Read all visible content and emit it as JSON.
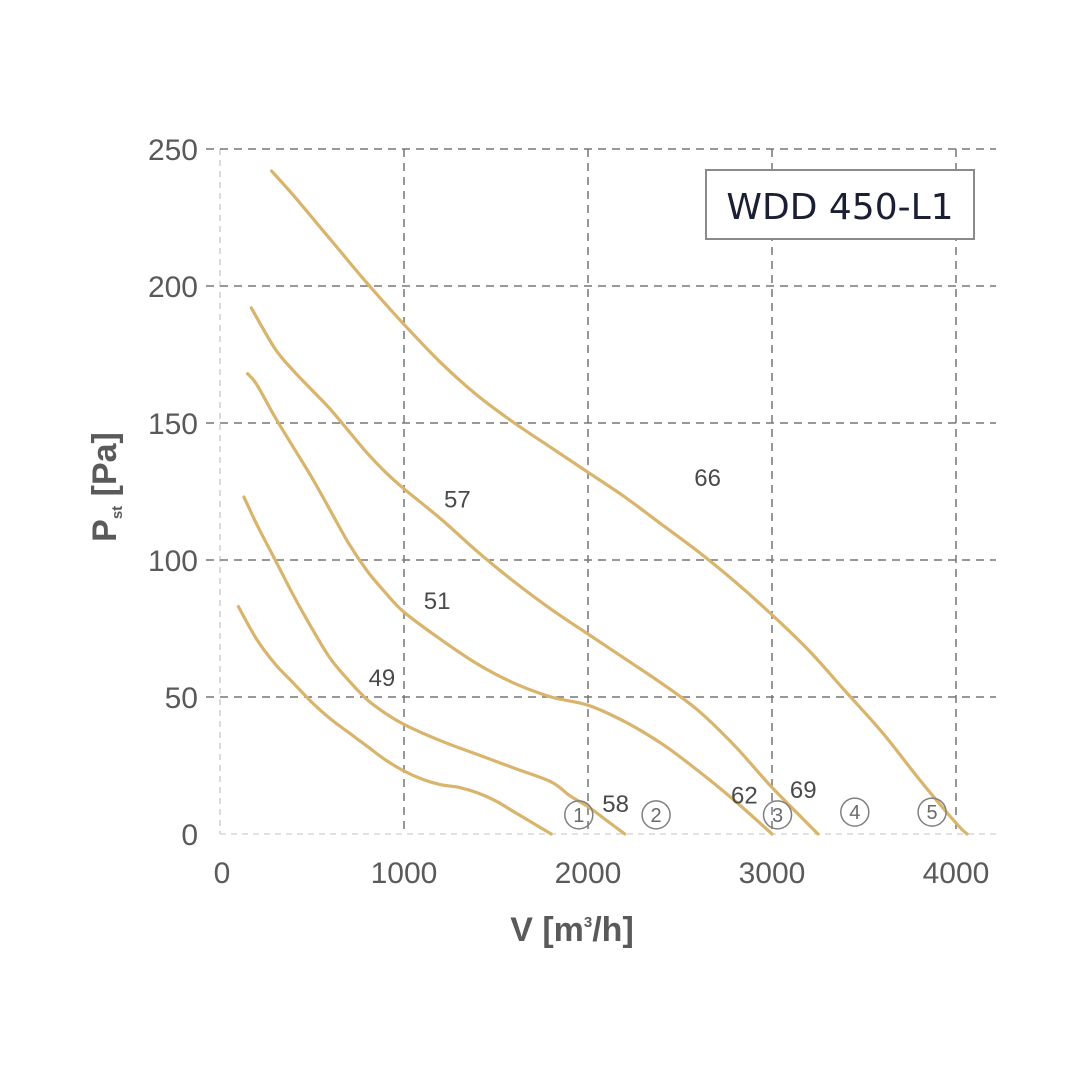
{
  "chart_data": {
    "type": "line",
    "title": "WDD 450-L1",
    "xlabel": "V [m",
    "xlabel_sup": "3",
    "xlabel_tail": "/h]",
    "ylabel": "P",
    "ylabel_sub": "st",
    "ylabel_tail": " [Pa]",
    "xlim": [
      0,
      4000
    ],
    "ylim": [
      0,
      250
    ],
    "x_ticks": [
      0,
      1000,
      2000,
      3000,
      4000
    ],
    "y_ticks": [
      0,
      50,
      100,
      150,
      200,
      250
    ],
    "grid": true,
    "curve_color": "#d9b46c",
    "grid_color": "#777777",
    "series": [
      {
        "id": "1",
        "x": [
          100,
          200,
          300,
          400,
          500,
          600,
          700,
          800,
          900,
          1000,
          1100,
          1200,
          1300,
          1400,
          1500,
          1600,
          1700,
          1800
        ],
        "y": [
          83,
          71,
          62,
          55,
          48,
          42,
          37,
          32,
          27,
          23,
          20,
          18,
          17,
          15,
          12,
          8,
          4,
          0
        ]
      },
      {
        "id": "2",
        "x": [
          130,
          200,
          300,
          400,
          500,
          600,
          700,
          800,
          900,
          1000,
          1200,
          1400,
          1600,
          1800,
          1900,
          2000,
          2100,
          2200
        ],
        "y": [
          123,
          113,
          100,
          87,
          75,
          64,
          56,
          49,
          44,
          40,
          34,
          29,
          24,
          19,
          14,
          10,
          5,
          0
        ]
      },
      {
        "id": "3",
        "x": [
          150,
          200,
          300,
          400,
          500,
          600,
          700,
          800,
          900,
          1000,
          1200,
          1400,
          1600,
          1800,
          2000,
          2200,
          2400,
          2600,
          2800,
          3000
        ],
        "y": [
          168,
          164,
          152,
          141,
          130,
          118,
          106,
          96,
          88,
          81,
          71,
          62,
          55,
          50,
          47,
          41,
          33,
          23,
          12,
          0
        ]
      },
      {
        "id": "4",
        "x": [
          170,
          300,
          400,
          500,
          600,
          700,
          800,
          900,
          1000,
          1200,
          1400,
          1600,
          1800,
          2000,
          2200,
          2400,
          2600,
          2800,
          3000,
          3250
        ],
        "y": [
          192,
          177,
          169,
          162,
          155,
          147,
          139,
          132,
          126,
          115,
          103,
          92,
          82,
          73,
          64,
          55,
          45,
          32,
          17,
          0
        ]
      },
      {
        "id": "5",
        "x": [
          280,
          400,
          600,
          800,
          1000,
          1200,
          1400,
          1600,
          1800,
          2000,
          2200,
          2400,
          2600,
          2800,
          3000,
          3200,
          3400,
          3600,
          3800,
          4000,
          4060
        ],
        "y": [
          242,
          233,
          217,
          201,
          186,
          172,
          160,
          150,
          141,
          132,
          123,
          113,
          103,
          92,
          80,
          67,
          52,
          37,
          20,
          4,
          0
        ]
      }
    ],
    "curve_labels": [
      {
        "text": "49",
        "x": 880,
        "y": 57
      },
      {
        "text": "51",
        "x": 1180,
        "y": 85
      },
      {
        "text": "57",
        "x": 1290,
        "y": 122
      },
      {
        "text": "66",
        "x": 2650,
        "y": 130
      },
      {
        "text": "58",
        "x": 2150,
        "y": 11
      },
      {
        "text": "62",
        "x": 2850,
        "y": 14
      },
      {
        "text": "69",
        "x": 3170,
        "y": 16
      }
    ],
    "markers": [
      {
        "text": "1",
        "x": 1950,
        "y": 7
      },
      {
        "text": "2",
        "x": 2370,
        "y": 7
      },
      {
        "text": "3",
        "x": 3030,
        "y": 7
      },
      {
        "text": "4",
        "x": 3450,
        "y": 8
      },
      {
        "text": "5",
        "x": 3870,
        "y": 8
      }
    ]
  }
}
